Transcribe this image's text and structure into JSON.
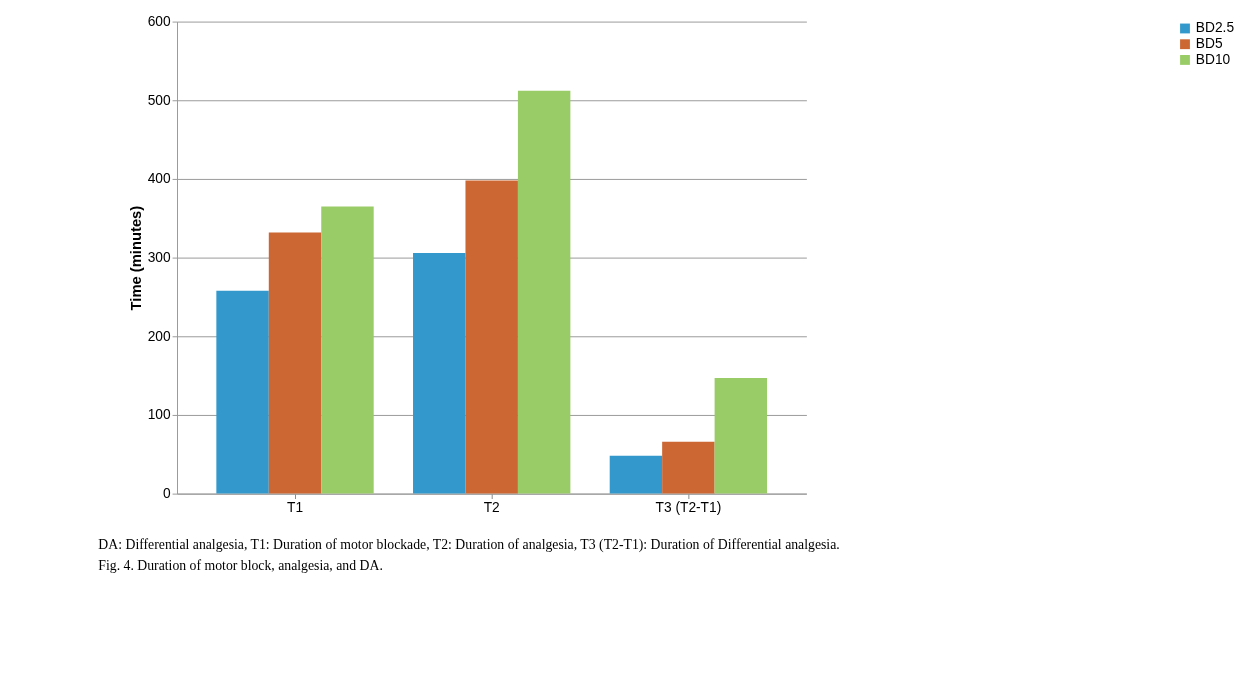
{
  "chart_data": {
    "type": "bar",
    "ylabel": "Time (minutes)",
    "categories": [
      "T1",
      "T2",
      "T3 (T2-T1)"
    ],
    "series": [
      {
        "name": "BD2.5",
        "color": "#3399cc",
        "values": [
          258,
          306,
          48
        ]
      },
      {
        "name": "BD5",
        "color": "#cc6633",
        "values": [
          332,
          398,
          66
        ]
      },
      {
        "name": "BD10",
        "color": "#99cc66",
        "values": [
          365,
          512,
          147
        ]
      }
    ],
    "ylim": [
      0,
      600
    ],
    "yticks": [
      0,
      100,
      200,
      300,
      400,
      500,
      600
    ],
    "grid": "y",
    "legend": "right",
    "annotations": [
      "DA: Differential analgesia, T1: Duration of motor blockade, T2: Duration of analgesia, T3 (T2-T1): Duration of Differential analgesia.",
      "Fig. 4. Duration of motor block, analgesia, and DA."
    ]
  }
}
